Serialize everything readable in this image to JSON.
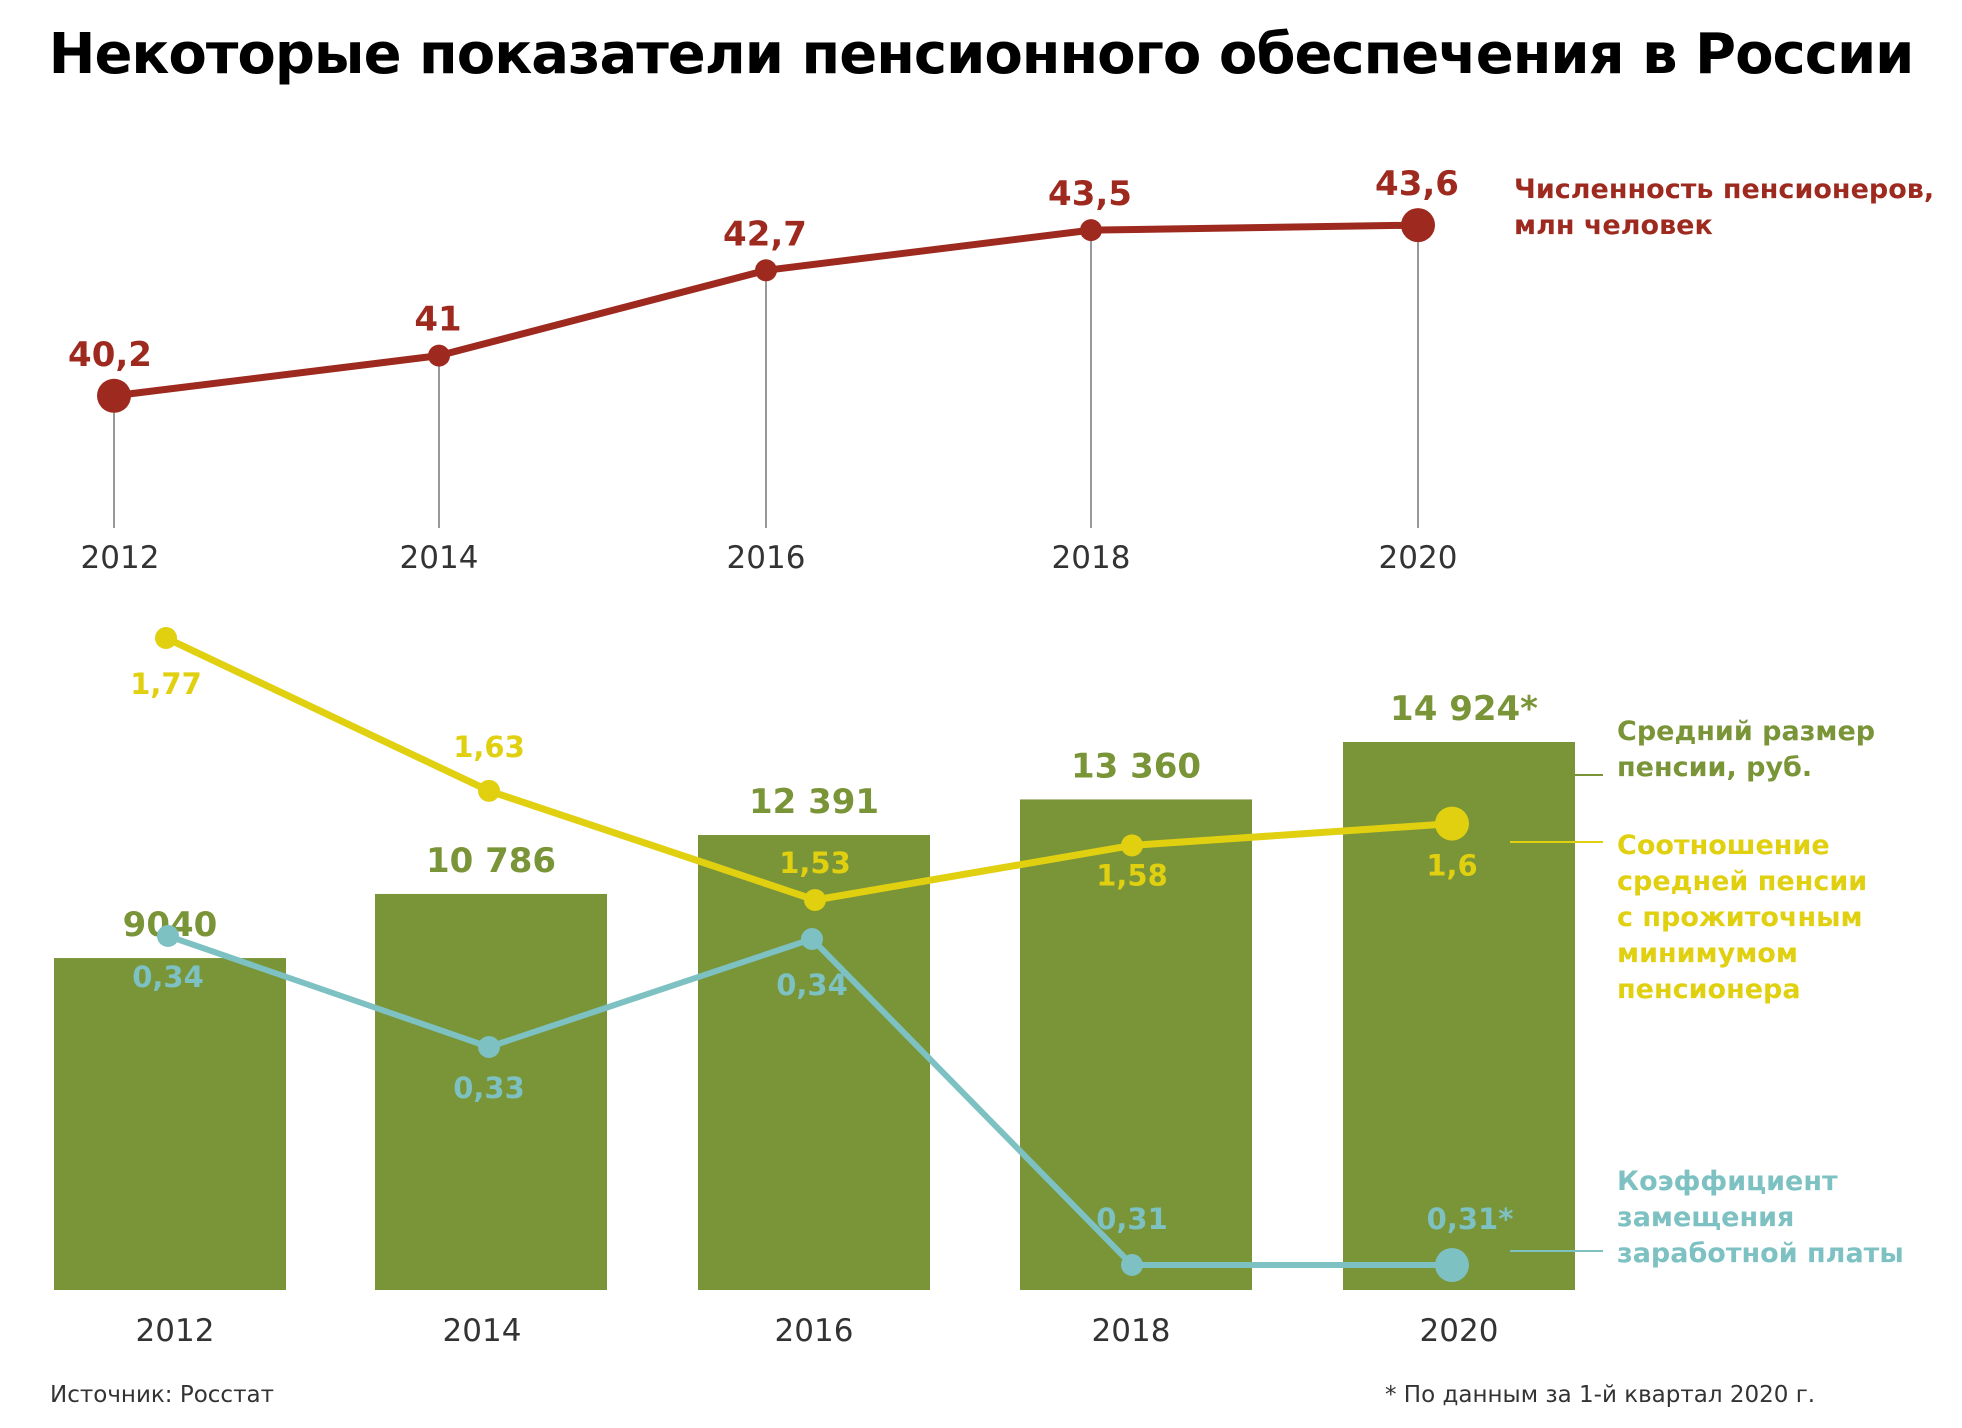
{
  "title": "Некоторые показатели пенсионного обеспечения в России",
  "colors": {
    "pensioners": "#9e2a1f",
    "pension": "#7a9438",
    "ratio": "#e0d010",
    "replacement": "#7dc1c3",
    "axis_text": "#333333"
  },
  "chart_data": [
    {
      "type": "line",
      "title": "",
      "categories": [
        "2012",
        "2014",
        "2016",
        "2018",
        "2020"
      ],
      "series": [
        {
          "name": "Численность пенсионеров, млн человек",
          "label_lines": [
            "Численность пенсионеров,",
            "млн человек"
          ],
          "values": [
            40.2,
            41,
            42.7,
            43.5,
            43.6
          ],
          "labels": [
            "40,2",
            "41",
            "42,7",
            "43,5",
            "43,6"
          ]
        }
      ],
      "ylim": [
        39.2,
        44.2
      ]
    },
    {
      "type": "bar",
      "title": "",
      "categories": [
        "2012",
        "2014",
        "2016",
        "2018",
        "2020"
      ],
      "series": [
        {
          "name": "Средний размер пенсии, руб.",
          "label_lines": [
            "Средний размер",
            "пенсии, руб."
          ],
          "values": [
            9040,
            10786,
            12391,
            13360,
            14924
          ],
          "labels": [
            "9040",
            "10 786",
            "12 391",
            "13 360",
            "14 924*"
          ]
        },
        {
          "name": "Соотношение средней пенсии с прожиточным минимумом пенсионера",
          "label_lines": [
            "Соотношение",
            "средней пенсии",
            "с прожиточным",
            "минимумом",
            "пенсионера"
          ],
          "values": [
            1.77,
            1.63,
            1.53,
            1.58,
            1.6
          ],
          "labels": [
            "1,77",
            "1,63",
            "1,53",
            "1,58",
            "1,6"
          ]
        },
        {
          "name": "Коэффициент замещения заработной платы",
          "label_lines": [
            "Коэффициент",
            "замещения",
            "заработной платы"
          ],
          "values": [
            0.34,
            0.33,
            0.34,
            0.31,
            0.31
          ],
          "labels": [
            "0,34",
            "0,33",
            "0,34",
            "0,31",
            "0,31*"
          ]
        }
      ]
    }
  ],
  "footnotes": {
    "source": "Источник: Росстат",
    "note": "*  По данным за 1-й квартал 2020 г."
  }
}
